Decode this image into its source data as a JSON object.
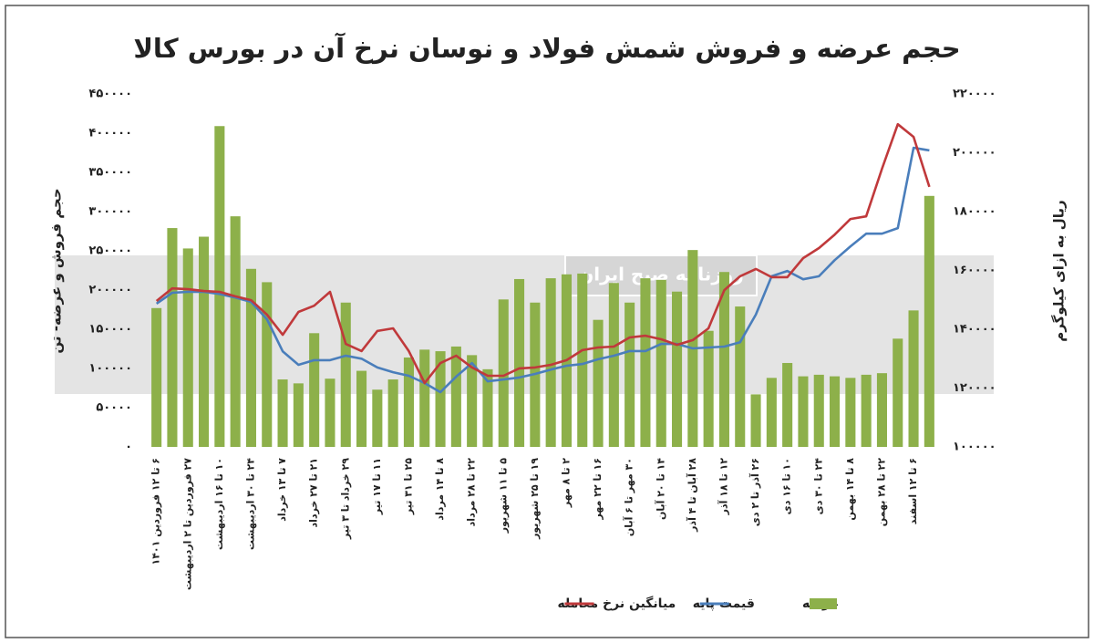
{
  "chart_data": {
    "type": "bar_line",
    "title": "حجم عرضه و فروش شمش فولاد و نوسان نرخ آن در بورس کالا",
    "y_label": "حجم فروش و عرضه- تن",
    "y2_label": "ریال به ازای کیلوگرم",
    "watermark": "روزنامه صبح ایران",
    "categories": [
      "۶ تا ۱۲ فروردین ۱۴۰۱",
      null,
      "۲۷ فروردین تا ۲ اردیبهشت",
      null,
      "۱۰ تا ۱۶ اردیبهشت",
      null,
      "۲۴ تا ۳۰ اردیبهشت",
      null,
      "۷ تا ۱۳ خرداد",
      null,
      "۲۱ تا ۲۷ خرداد",
      null,
      "۲۹ خرداد تا ۳ تیر",
      null,
      "۱۱ تا ۱۷ تیر",
      null,
      "۲۵ تا ۳۱ تیر",
      null,
      "۸ تا ۱۴ مرداد",
      null,
      "۲۲ تا ۲۸ مرداد",
      null,
      "۵ تا ۱۱ شهریور",
      null,
      "۱۹ تا ۲۵ شهریور",
      null,
      "۲ تا ۸ مهر",
      null,
      "۱۶ تا ۲۲ مهر",
      null,
      "۳۰ مهر تا ۶ آبان",
      null,
      "۱۴ تا ۲۰ آبان",
      null,
      "۲۸ آبان تا ۴ آذر",
      null,
      "۱۲ تا ۱۸ آذر",
      null,
      "۲۶ آذر تا ۲ دی",
      null,
      "۱۰ تا ۱۶ دی",
      null,
      "۲۴ تا ۳۰ دی",
      null,
      "۸ تا ۱۴ بهمن",
      null,
      "۲۲ تا ۲۸ بهمن",
      null,
      "۶ تا ۱۲ اسفند",
      null
    ],
    "series": [
      {
        "name": "عرضه",
        "type": "bar",
        "color": "#8db04a",
        "values": [
          177000,
          279000,
          253000,
          268000,
          409000,
          294000,
          227000,
          210000,
          86000,
          81000,
          145000,
          87000,
          184000,
          97000,
          73000,
          86000,
          114000,
          124000,
          122000,
          128000,
          117000,
          99000,
          188000,
          214000,
          184000,
          215000,
          220000,
          221000,
          162000,
          209000,
          184000,
          215000,
          213000,
          198000,
          251000,
          148000,
          223000,
          179000,
          67000,
          88000,
          107000,
          90000,
          92000,
          90000,
          88000,
          92000,
          94000,
          138000,
          174000,
          320000
        ]
      },
      {
        "name": "قیمت پایه",
        "type": "line",
        "axis": "y2",
        "color": "#4a7ebb",
        "values": [
          148700,
          152400,
          152700,
          152700,
          152000,
          150800,
          149300,
          143400,
          132500,
          127900,
          129500,
          129500,
          131000,
          130000,
          127000,
          125400,
          124200,
          121700,
          118600,
          123900,
          128500,
          122300,
          122900,
          123600,
          124800,
          126300,
          127600,
          128200,
          129800,
          131000,
          132600,
          132600,
          135000,
          135000,
          133500,
          133800,
          134100,
          135600,
          145000,
          158000,
          159800,
          157000,
          158000,
          163500,
          168200,
          172500,
          172500,
          174400,
          201700,
          200800
        ]
      },
      {
        "name": "میانگین نرخ معامله",
        "type": "line",
        "axis": "y2",
        "color": "#c0393b",
        "values": [
          149600,
          153900,
          153600,
          153000,
          152700,
          151200,
          149900,
          145000,
          138100,
          145900,
          148000,
          152700,
          135000,
          132600,
          139400,
          140300,
          132600,
          121700,
          128500,
          131000,
          127000,
          124200,
          124200,
          126700,
          127000,
          127900,
          129500,
          132900,
          133800,
          134100,
          137200,
          137800,
          136600,
          134700,
          136300,
          140300,
          153300,
          158000,
          160500,
          157700,
          157700,
          164200,
          167600,
          172200,
          177500,
          178400,
          194600,
          209700,
          205400,
          188400
        ]
      }
    ],
    "ylim": [
      0,
      450000
    ],
    "yticks": [
      {
        "value": 0,
        "label": "۰"
      },
      {
        "value": 50000,
        "label": "۵۰۰۰۰"
      },
      {
        "value": 100000,
        "label": "۱۰۰۰۰۰"
      },
      {
        "value": 150000,
        "label": "۱۵۰۰۰۰"
      },
      {
        "value": 200000,
        "label": "۲۰۰۰۰۰"
      },
      {
        "value": 250000,
        "label": "۲۵۰۰۰۰"
      },
      {
        "value": 300000,
        "label": "۳۰۰۰۰۰"
      },
      {
        "value": 350000,
        "label": "۳۵۰۰۰۰"
      },
      {
        "value": 400000,
        "label": "۴۰۰۰۰۰"
      },
      {
        "value": 450000,
        "label": "۴۵۰۰۰۰"
      }
    ],
    "y2lim": [
      100000,
      220000
    ],
    "y2ticks": [
      {
        "value": 100000,
        "label": "۱۰۰۰۰۰"
      },
      {
        "value": 120000,
        "label": "۱۲۰۰۰۰"
      },
      {
        "value": 140000,
        "label": "۱۴۰۰۰۰"
      },
      {
        "value": 160000,
        "label": "۱۶۰۰۰۰"
      },
      {
        "value": 180000,
        "label": "۱۸۰۰۰۰"
      },
      {
        "value": 200000,
        "label": "۲۰۰۰۰۰"
      },
      {
        "value": 220000,
        "label": "۲۲۰۰۰۰"
      }
    ],
    "grid": false,
    "legend": "bottom"
  }
}
